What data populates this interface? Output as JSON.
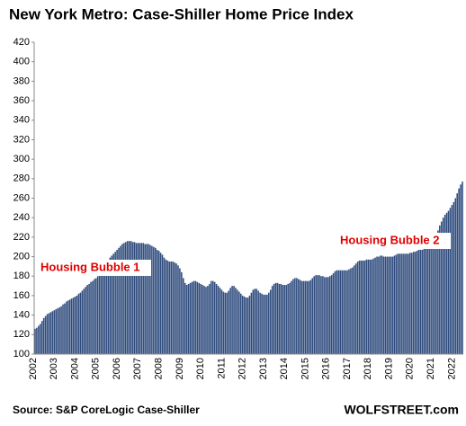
{
  "chart_data": {
    "type": "bar",
    "title": "New York Metro: Case-Shiller Home Price Index",
    "annotations": [
      "Housing Bubble 1",
      "Housing Bubble 2"
    ],
    "source": "Source: S&P CoreLogic Case-Shiller",
    "brand": "WOLFSTREET.com",
    "color": "#2e4b7d",
    "ylim": [
      100,
      420
    ],
    "yticks": [
      100,
      120,
      140,
      160,
      180,
      200,
      220,
      240,
      260,
      280,
      300,
      320,
      340,
      360,
      380,
      400,
      420
    ],
    "categories": [
      "2002",
      null,
      null,
      null,
      null,
      null,
      null,
      null,
      null,
      null,
      null,
      null,
      "2003",
      null,
      null,
      null,
      null,
      null,
      null,
      null,
      null,
      null,
      null,
      null,
      "2004",
      null,
      null,
      null,
      null,
      null,
      null,
      null,
      null,
      null,
      null,
      null,
      "2005",
      null,
      null,
      null,
      null,
      null,
      null,
      null,
      null,
      null,
      null,
      null,
      "2006",
      null,
      null,
      null,
      null,
      null,
      null,
      null,
      null,
      null,
      null,
      null,
      "2007",
      null,
      null,
      null,
      null,
      null,
      null,
      null,
      null,
      null,
      null,
      null,
      "2008",
      null,
      null,
      null,
      null,
      null,
      null,
      null,
      null,
      null,
      null,
      null,
      "2009",
      null,
      null,
      null,
      null,
      null,
      null,
      null,
      null,
      null,
      null,
      null,
      "2010",
      null,
      null,
      null,
      null,
      null,
      null,
      null,
      null,
      null,
      null,
      null,
      "2011",
      null,
      null,
      null,
      null,
      null,
      null,
      null,
      null,
      null,
      null,
      null,
      "2012",
      null,
      null,
      null,
      null,
      null,
      null,
      null,
      null,
      null,
      null,
      null,
      "2013",
      null,
      null,
      null,
      null,
      null,
      null,
      null,
      null,
      null,
      null,
      null,
      "2014",
      null,
      null,
      null,
      null,
      null,
      null,
      null,
      null,
      null,
      null,
      null,
      "2015",
      null,
      null,
      null,
      null,
      null,
      null,
      null,
      null,
      null,
      null,
      null,
      "2016",
      null,
      null,
      null,
      null,
      null,
      null,
      null,
      null,
      null,
      null,
      null,
      "2017",
      null,
      null,
      null,
      null,
      null,
      null,
      null,
      null,
      null,
      null,
      null,
      "2018",
      null,
      null,
      null,
      null,
      null,
      null,
      null,
      null,
      null,
      null,
      null,
      "2019",
      null,
      null,
      null,
      null,
      null,
      null,
      null,
      null,
      null,
      null,
      null,
      "2020",
      null,
      null,
      null,
      null,
      null,
      null,
      null,
      null,
      null,
      null,
      null,
      "2021",
      null,
      null,
      null,
      null,
      null,
      null,
      null,
      null,
      null,
      null,
      null,
      "2022",
      null,
      null,
      null,
      null,
      null
    ],
    "values": [
      126,
      127,
      129,
      131,
      134,
      137,
      139,
      141,
      142,
      143,
      144,
      145,
      146,
      147,
      148,
      149,
      151,
      152,
      154,
      155,
      156,
      157,
      158,
      159,
      160,
      162,
      163,
      165,
      167,
      169,
      171,
      172,
      174,
      175,
      177,
      178,
      180,
      182,
      184,
      187,
      190,
      193,
      196,
      199,
      201,
      203,
      205,
      207,
      209,
      211,
      213,
      214,
      215,
      216,
      216,
      216,
      215,
      215,
      214,
      214,
      214,
      214,
      214,
      213,
      213,
      213,
      212,
      211,
      210,
      209,
      207,
      206,
      204,
      202,
      199,
      197,
      196,
      195,
      195,
      195,
      194,
      193,
      191,
      188,
      184,
      178,
      173,
      171,
      172,
      173,
      174,
      175,
      175,
      174,
      173,
      172,
      171,
      170,
      169,
      170,
      172,
      175,
      175,
      174,
      172,
      170,
      168,
      166,
      164,
      163,
      163,
      165,
      168,
      170,
      170,
      168,
      166,
      164,
      162,
      160,
      159,
      158,
      158,
      160,
      163,
      166,
      167,
      167,
      165,
      163,
      162,
      161,
      161,
      161,
      163,
      166,
      170,
      172,
      173,
      173,
      172,
      172,
      171,
      171,
      171,
      172,
      173,
      175,
      177,
      178,
      178,
      177,
      176,
      175,
      175,
      175,
      175,
      175,
      176,
      178,
      180,
      181,
      181,
      181,
      180,
      180,
      179,
      179,
      179,
      180,
      181,
      183,
      185,
      186,
      186,
      186,
      186,
      186,
      186,
      186,
      187,
      188,
      189,
      191,
      193,
      195,
      196,
      196,
      196,
      196,
      197,
      197,
      197,
      197,
      198,
      199,
      200,
      200,
      201,
      201,
      200,
      200,
      200,
      200,
      200,
      200,
      201,
      202,
      203,
      203,
      203,
      203,
      203,
      203,
      203,
      204,
      204,
      205,
      205,
      206,
      207,
      207,
      207,
      208,
      209,
      210,
      212,
      214,
      216,
      219,
      223,
      227,
      232,
      236,
      240,
      243,
      245,
      247,
      250,
      253,
      256,
      260,
      265,
      270,
      274,
      277
    ]
  }
}
